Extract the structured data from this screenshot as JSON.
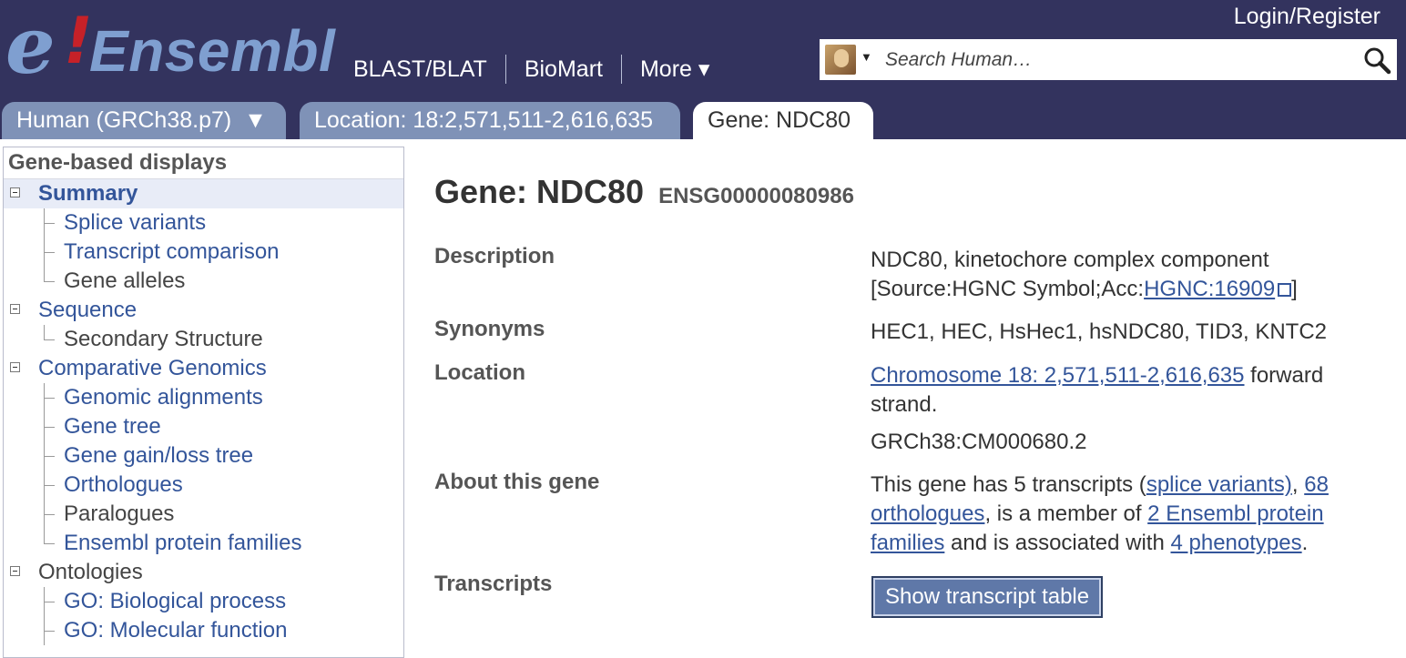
{
  "header": {
    "logo_text": "e!Ensembl",
    "nav_links": [
      {
        "label": "BLAST/BLAT"
      },
      {
        "label": "BioMart"
      },
      {
        "label": "More ▾"
      }
    ],
    "login_label": "Login/Register",
    "search": {
      "placeholder": "Search Human…",
      "species_icon": "human-species-icon"
    }
  },
  "tabs": [
    {
      "label": "Human (GRCh38.p7)  ▼",
      "state": "inactive"
    },
    {
      "label": "Location: 18:2,571,511-2,616,635",
      "state": "inactive"
    },
    {
      "label": "Gene: NDC80",
      "state": "active"
    }
  ],
  "sidebar": {
    "heading": "Gene-based displays",
    "items": [
      {
        "label": "Summary",
        "level": 1,
        "link": true,
        "selected": true
      },
      {
        "label": "Splice variants",
        "level": 2,
        "link": true
      },
      {
        "label": "Transcript comparison",
        "level": 2,
        "link": true
      },
      {
        "label": "Gene alleles",
        "level": 2,
        "link": false
      },
      {
        "label": "Sequence",
        "level": 1,
        "link": true
      },
      {
        "label": "Secondary Structure",
        "level": 2,
        "link": false
      },
      {
        "label": "Comparative Genomics",
        "level": 1,
        "link": true
      },
      {
        "label": "Genomic alignments",
        "level": 2,
        "link": true
      },
      {
        "label": "Gene tree",
        "level": 2,
        "link": true
      },
      {
        "label": "Gene gain/loss tree",
        "level": 2,
        "link": true
      },
      {
        "label": "Orthologues",
        "level": 2,
        "link": true
      },
      {
        "label": "Paralogues",
        "level": 2,
        "link": false
      },
      {
        "label": "Ensembl protein families",
        "level": 2,
        "link": true
      },
      {
        "label": "Ontologies",
        "level": 1,
        "link": false
      },
      {
        "label": "GO: Biological process",
        "level": 2,
        "link": true
      },
      {
        "label": "GO: Molecular function",
        "level": 2,
        "link": true
      }
    ]
  },
  "main": {
    "gene_title": "Gene: NDC80",
    "stable_id": "ENSG00000080986",
    "description_label": "Description",
    "description_text": "NDC80, kinetochore complex component",
    "description_source_prefix": "[Source:HGNC Symbol;Acc:",
    "description_source_link": "HGNC:16909",
    "description_source_suffix": "]",
    "synonyms_label": "Synonyms",
    "synonyms": "HEC1, HEC, HsHec1, hsNDC80, TID3, KNTC2",
    "location_label": "Location",
    "location_link": "Chromosome 18: 2,571,511-2,616,635",
    "location_suffix": " forward strand.",
    "assembly": "GRCh38:CM000680.2",
    "about_label": "About this gene",
    "about_1": "This gene has 5 transcripts (",
    "about_link_splice": "splice variants)",
    "about_2": ", ",
    "about_link_orth": "68 orthologues",
    "about_3": ", is a member of ",
    "about_link_fam": "2 Ensembl protein families",
    "about_4": " and is associated with ",
    "about_link_pheno": "4 phenotypes",
    "about_5": ".",
    "transcripts_label": "Transcripts",
    "transcript_button": "Show transcript table"
  },
  "colors": {
    "masthead": "#33335e",
    "tab_inactive": "#7f92b7",
    "link": "#33559a",
    "button": "#5f78a8"
  }
}
